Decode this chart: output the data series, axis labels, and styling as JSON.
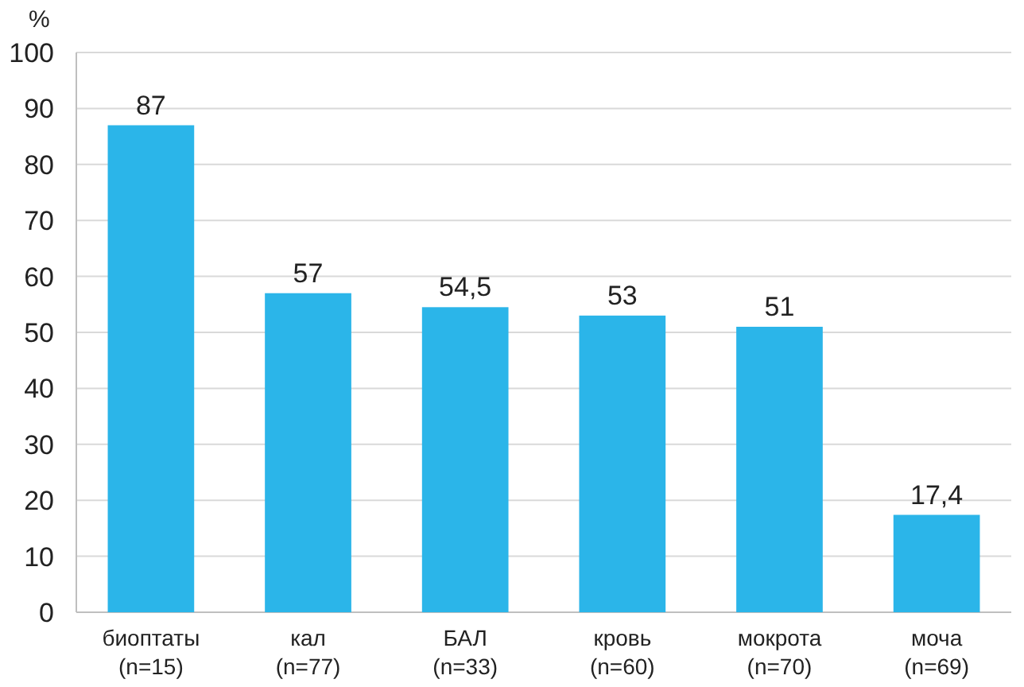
{
  "chart_data": {
    "type": "bar",
    "ylabel": "%",
    "categories": [
      "биоптаты\n(n=15)",
      "кал\n(n=77)",
      "БАЛ\n(n=33)",
      "кровь\n(n=60)",
      "мокрота\n(n=70)",
      "моча\n(n=69)"
    ],
    "values": [
      87,
      57,
      54.5,
      53,
      51,
      17.4
    ],
    "value_labels": [
      "87",
      "57",
      "54,5",
      "53",
      "51",
      "17,4"
    ],
    "color": "#2bb5e9",
    "ylim": [
      0,
      100
    ],
    "yticks": [
      0,
      10,
      20,
      30,
      40,
      50,
      60,
      70,
      80,
      90,
      100
    ],
    "grid": "y"
  }
}
